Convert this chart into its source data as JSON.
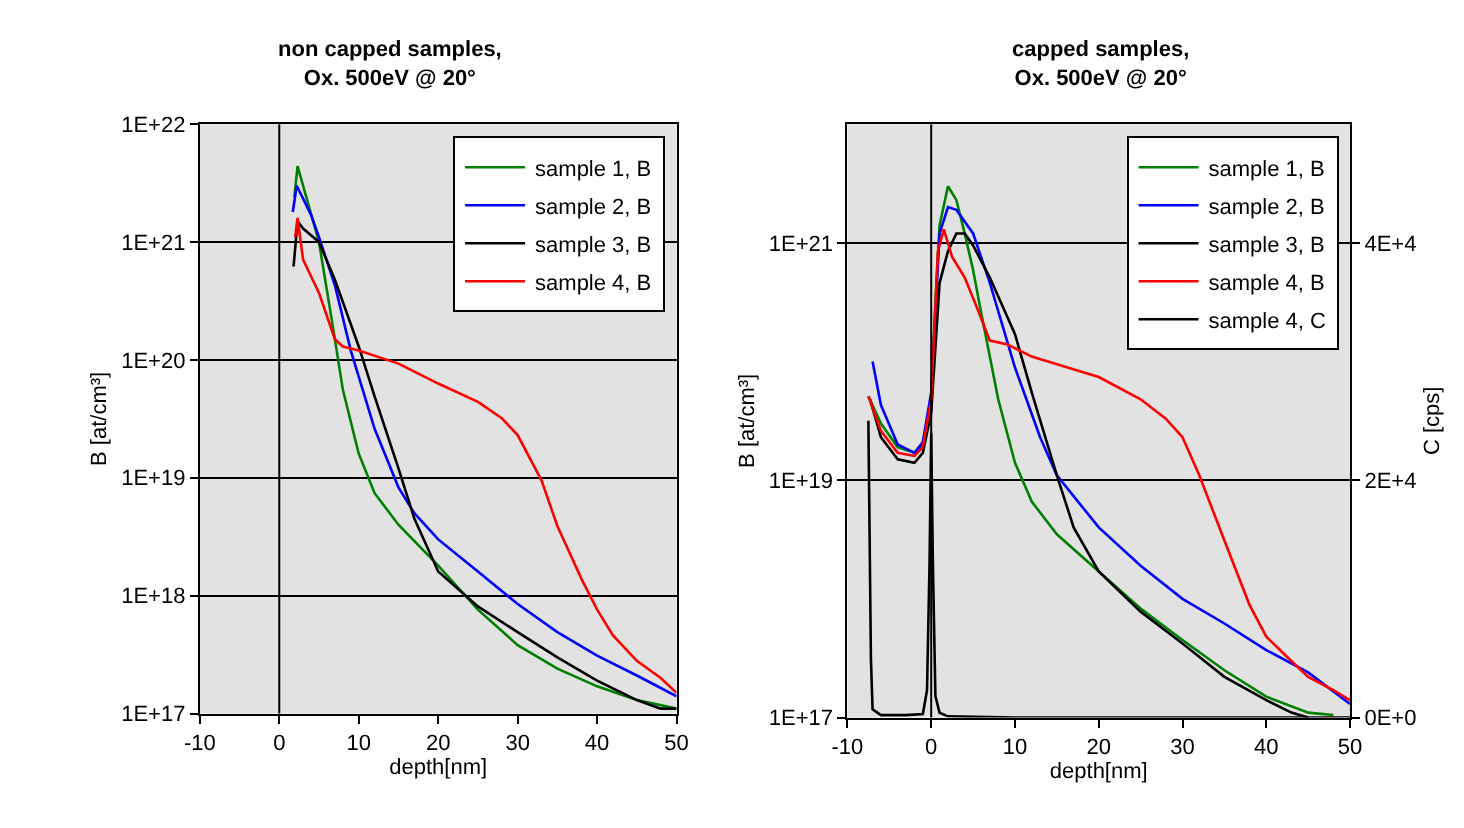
{
  "chart_data": [
    {
      "type": "line",
      "title": "non capped samples,\nOx. 500eV @ 20°",
      "xlabel": "depth[nm]",
      "ylabel": "B [at/cm³]",
      "log": "y",
      "grid": "y",
      "legend": "top right",
      "marker": "none",
      "line_style": "solid",
      "xlim": [
        -10,
        50
      ],
      "xticks": [
        -10,
        0,
        10,
        20,
        30,
        40,
        50
      ],
      "ylim": [
        1e+17,
        1e+22
      ],
      "yticks": [
        {
          "value": 1e+17,
          "label": "1E+17"
        },
        {
          "value": 1e+18,
          "label": "1E+18"
        },
        {
          "value": 1e+19,
          "label": "1E+19"
        },
        {
          "value": 1e+20,
          "label": "1E+20"
        },
        {
          "value": 1e+21,
          "label": "1E+21"
        },
        {
          "value": 1e+22,
          "label": "1E+22"
        }
      ],
      "ref_lines": [
        {
          "axis": "x",
          "value": 0,
          "color": "#000000"
        }
      ],
      "series": [
        {
          "name": "sample 1, B",
          "color": "#008000",
          "x": [
            1.9,
            2.3,
            5,
            7,
            8,
            10,
            12,
            15,
            20,
            25,
            30,
            35,
            40,
            45,
            50
          ],
          "values": [
            2.4e+21,
            4.4e+21,
            1e+21,
            1.5e+20,
            5.6e+19,
            1.6e+19,
            7.4e+18,
            4e+18,
            1.8e+18,
            7.6e+17,
            3.8e+17,
            2.4e+17,
            1.7e+17,
            1.3e+17,
            1.1e+17
          ]
        },
        {
          "name": "sample 2, B",
          "color": "#0000ff",
          "x": [
            1.7,
            2.2,
            4,
            5,
            7,
            9,
            10,
            12,
            15,
            17,
            20,
            25,
            30,
            35,
            40,
            45,
            50
          ],
          "values": [
            1.8e+21,
            3e+21,
            1.7e+21,
            1.1e+21,
            4.3e+20,
            1.2e+20,
            7.2e+19,
            2.6e+19,
            8.3e+18,
            5e+18,
            3e+18,
            1.6e+18,
            8.5e+17,
            4.9e+17,
            3.1e+17,
            2.1e+17,
            1.4e+17
          ]
        },
        {
          "name": "sample 3, B",
          "color": "#000000",
          "x": [
            1.8,
            2.3,
            3,
            5,
            7,
            10,
            12,
            15,
            17,
            20,
            25,
            30,
            35,
            40,
            45,
            48,
            50
          ],
          "values": [
            6.2e+20,
            1.5e+21,
            1.3e+21,
            1e+21,
            4.8e+20,
            1.3e+20,
            4.9e+19,
            1.2e+19,
            4.5e+18,
            1.6e+18,
            8.1e+17,
            4.9e+17,
            3e+17,
            1.9e+17,
            1.3e+17,
            1.1e+17,
            1.1e+17
          ]
        },
        {
          "name": "sample 4, B",
          "color": "#ff0000",
          "x": [
            2,
            2.3,
            3,
            5,
            7,
            8,
            10,
            15,
            20,
            25,
            28,
            30,
            33,
            35,
            38,
            40,
            42,
            45,
            48,
            50
          ],
          "values": [
            1.1e+21,
            1.6e+21,
            7.1e+20,
            3.7e+20,
            1.5e+20,
            1.3e+20,
            1.2e+20,
            9.3e+19,
            6.3e+19,
            4.4e+19,
            3.2e+19,
            2.3e+19,
            9.5e+18,
            3.9e+18,
            1.4e+18,
            7.6e+17,
            4.6e+17,
            2.8e+17,
            2e+17,
            1.5e+17
          ]
        }
      ]
    },
    {
      "type": "line",
      "title": "capped samples,\nOx. 500eV @ 20°",
      "xlabel": "depth[nm]",
      "ylabel": "B [at/cm³]",
      "y2label": "C [cps]",
      "log": "y",
      "grid": "y",
      "legend": "top right",
      "marker": "none",
      "line_style": "solid",
      "xlim": [
        -10,
        50
      ],
      "xticks": [
        -10,
        0,
        10,
        20,
        30,
        40,
        50
      ],
      "ylim": [
        1e+17,
        1e+22
      ],
      "yticks": [
        {
          "value": 1e+17,
          "label": "1E+17"
        },
        {
          "value": 1e+19,
          "label": "1E+19"
        },
        {
          "value": 1e+21,
          "label": "1E+21"
        }
      ],
      "y2lim": [
        0,
        50000
      ],
      "y2ticks": [
        {
          "value": 0,
          "label": "0E+0"
        },
        {
          "value": 20000,
          "label": "2E+4"
        },
        {
          "value": 40000,
          "label": "4E+4"
        }
      ],
      "ref_lines": [
        {
          "axis": "x",
          "value": 0,
          "color": "#000000"
        }
      ],
      "series": [
        {
          "name": "sample 1, B",
          "color": "#008000",
          "x": [
            -7.5,
            -6,
            -4,
            -2,
            -1,
            0,
            0.5,
            1,
            2,
            3,
            4,
            5,
            6,
            8,
            10,
            12,
            15,
            20,
            25,
            30,
            35,
            40,
            45,
            48
          ],
          "values": [
            5.1e+19,
            3e+19,
            1.9e+19,
            1.7e+19,
            2e+19,
            4.8e+19,
            3.2e+20,
            1.4e+21,
            3e+21,
            2.3e+21,
            1.2e+21,
            5.9e+20,
            2.5e+20,
            4.8e+19,
            1.4e+19,
            6.6e+18,
            3.5e+18,
            1.7e+18,
            8.3e+17,
            4.5e+17,
            2.5e+17,
            1.5e+17,
            1.1e+17,
            1.05e+17
          ]
        },
        {
          "name": "sample 2, B",
          "color": "#0000ff",
          "x": [
            -7,
            -6,
            -4,
            -2,
            -1,
            0,
            1,
            2,
            3,
            5,
            7,
            10,
            13,
            15,
            20,
            25,
            30,
            35,
            40,
            45,
            50
          ],
          "values": [
            1e+20,
            4.3e+19,
            2e+19,
            1.7e+19,
            2.1e+19,
            5.5e+19,
            1.2e+21,
            2e+21,
            1.9e+21,
            1.2e+21,
            4.6e+20,
            8.9e+19,
            2.3e+19,
            1.1e+19,
            4e+18,
            1.9e+18,
            1e+18,
            6.2e+17,
            3.7e+17,
            2.4e+17,
            1.3e+17
          ]
        },
        {
          "name": "sample 3, B",
          "color": "#000000",
          "x": [
            -7.3,
            -6,
            -4,
            -2,
            -1,
            0,
            1,
            2,
            3,
            4,
            5,
            7,
            10,
            12,
            15,
            17,
            20,
            25,
            30,
            35,
            40,
            43,
            45
          ],
          "values": [
            4.8e+19,
            2.3e+19,
            1.5e+19,
            1.4e+19,
            1.7e+19,
            3.7e+19,
            4.6e+20,
            8.5e+20,
            1.2e+21,
            1.2e+21,
            9.5e+20,
            5.1e+20,
            1.7e+20,
            5.5e+19,
            1.1e+19,
            4e+18,
            1.7e+18,
            7.8e+17,
            4.2e+17,
            2.2e+17,
            1.4e+17,
            1.1e+17,
            1e+17
          ]
        },
        {
          "name": "sample 4, B",
          "color": "#ff0000",
          "x": [
            -7.5,
            -6,
            -4,
            -2,
            -1,
            0,
            0.8,
            1.5,
            2.5,
            4,
            5.5,
            7,
            9,
            12,
            15,
            20,
            25,
            28,
            30,
            32,
            35,
            38,
            40,
            42,
            45,
            48,
            50
          ],
          "values": [
            5.1e+19,
            2.6e+19,
            1.7e+19,
            1.6e+19,
            1.9e+19,
            4.8e+19,
            8.5e+20,
            1.3e+21,
            7.6e+20,
            5.1e+20,
            2.8e+20,
            1.5e+20,
            1.4e+20,
            1.1e+20,
            9.5e+19,
            7.4e+19,
            4.8e+19,
            3.3e+19,
            2.3e+19,
            1.1e+19,
            3.1e+18,
            8.9e+17,
            4.8e+17,
            3.5e+17,
            2.2e+17,
            1.7e+17,
            1.4e+17
          ]
        },
        {
          "name": "sample 4, C",
          "color": "#000000",
          "axis": "y2",
          "x": [
            -7.5,
            -7.2,
            -7,
            -6,
            -3,
            -1,
            -0.5,
            -0.2,
            0,
            0.2,
            0.5,
            1,
            2,
            10,
            50
          ],
          "values": [
            25000,
            5000,
            700,
            200,
            200,
            300,
            2300,
            13000,
            24000,
            13000,
            1800,
            400,
            100,
            0,
            0
          ]
        }
      ]
    }
  ]
}
